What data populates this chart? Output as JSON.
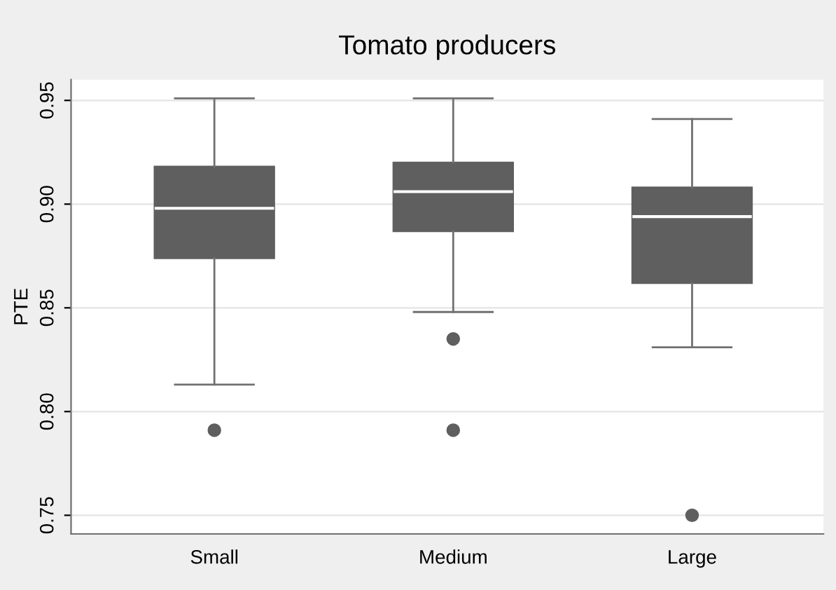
{
  "chart_data": {
    "type": "box",
    "title": "Tomato producers",
    "ylabel": "PTE",
    "categories": [
      "Small",
      "Medium",
      "Large"
    ],
    "boxes": [
      {
        "low": 0.813,
        "q1": 0.874,
        "median": 0.898,
        "q3": 0.918,
        "high": 0.951,
        "outliers": [
          0.791
        ]
      },
      {
        "low": 0.848,
        "q1": 0.887,
        "median": 0.906,
        "q3": 0.92,
        "high": 0.951,
        "outliers": [
          0.835,
          0.791
        ]
      },
      {
        "low": 0.831,
        "q1": 0.862,
        "median": 0.894,
        "q3": 0.908,
        "high": 0.941,
        "outliers": [
          0.75
        ]
      }
    ],
    "color": "#5f5f5f",
    "ylim": [
      0.741,
      0.96
    ],
    "yticks": [
      {
        "value": 0.75,
        "label": "0.75"
      },
      {
        "value": 0.8,
        "label": "0.80"
      },
      {
        "value": 0.85,
        "label": "0.85"
      },
      {
        "value": 0.9,
        "label": "0.90"
      },
      {
        "value": 0.95,
        "label": "0.95"
      }
    ],
    "grid": "y"
  }
}
